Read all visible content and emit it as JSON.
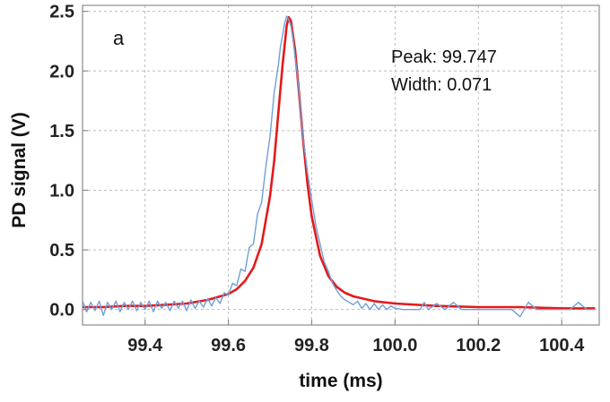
{
  "chart_data": {
    "type": "line",
    "panel_label": "a",
    "xlabel": "time (ms)",
    "ylabel": "PD signal (V)",
    "xlim": [
      99.25,
      100.49
    ],
    "ylim": [
      -0.13,
      2.55
    ],
    "xticks": [
      99.4,
      99.6,
      99.8,
      100.0,
      100.2,
      100.4
    ],
    "xtick_labels": [
      "99.4",
      "99.6",
      "99.8",
      "100.0",
      "100.2",
      "100.4"
    ],
    "yticks": [
      0.0,
      0.5,
      1.0,
      1.5,
      2.0,
      2.5
    ],
    "ytick_labels": [
      "0.0",
      "0.5",
      "1.0",
      "1.5",
      "2.0",
      "2.5"
    ],
    "grid": "dashed",
    "annotations": [
      "Peak: 99.747",
      "Width: 0.071"
    ],
    "colors": {
      "data": "#6f9fd8",
      "fit": "#e31a1c"
    },
    "series": [
      {
        "kind": "measured",
        "x": [
          99.25,
          99.26,
          99.27,
          99.28,
          99.29,
          99.3,
          99.31,
          99.32,
          99.33,
          99.34,
          99.35,
          99.36,
          99.37,
          99.38,
          99.39,
          99.4,
          99.41,
          99.42,
          99.43,
          99.44,
          99.45,
          99.46,
          99.47,
          99.48,
          99.49,
          99.5,
          99.51,
          99.52,
          99.53,
          99.54,
          99.55,
          99.56,
          99.57,
          99.58,
          99.59,
          99.6,
          99.61,
          99.62,
          99.63,
          99.64,
          99.65,
          99.66,
          99.67,
          99.68,
          99.69,
          99.7,
          99.71,
          99.72,
          99.725,
          99.73,
          99.735,
          99.74,
          99.745,
          99.75,
          99.755,
          99.76,
          99.765,
          99.77,
          99.775,
          99.78,
          99.79,
          99.8,
          99.81,
          99.82,
          99.83,
          99.84,
          99.85,
          99.86,
          99.87,
          99.88,
          99.89,
          99.9,
          99.91,
          99.92,
          99.93,
          99.94,
          99.95,
          99.96,
          99.97,
          99.98,
          99.99,
          100.0,
          100.02,
          100.04,
          100.06,
          100.07,
          100.08,
          100.1,
          100.12,
          100.14,
          100.16,
          100.18,
          100.2,
          100.22,
          100.24,
          100.26,
          100.28,
          100.3,
          100.32,
          100.34,
          100.36,
          100.38,
          100.4,
          100.42,
          100.44,
          100.46,
          100.48
        ],
        "y": [
          0.07,
          -0.02,
          0.06,
          -0.01,
          0.07,
          -0.05,
          0.06,
          0.0,
          0.07,
          -0.02,
          0.06,
          0.0,
          0.07,
          -0.01,
          0.06,
          0.0,
          0.07,
          -0.02,
          0.07,
          0.01,
          0.06,
          -0.01,
          0.07,
          0.01,
          0.07,
          -0.01,
          0.08,
          0.01,
          0.07,
          0.02,
          0.09,
          0.03,
          0.1,
          0.05,
          0.14,
          0.12,
          0.22,
          0.2,
          0.34,
          0.32,
          0.52,
          0.55,
          0.8,
          0.9,
          1.2,
          1.45,
          1.82,
          2.05,
          2.2,
          2.3,
          2.4,
          2.46,
          2.43,
          2.38,
          2.28,
          2.12,
          1.98,
          1.8,
          1.6,
          1.42,
          1.15,
          0.92,
          0.7,
          0.55,
          0.4,
          0.32,
          0.22,
          0.16,
          0.11,
          0.08,
          0.06,
          0.04,
          0.07,
          0.01,
          0.05,
          0.0,
          0.05,
          0.0,
          0.04,
          0.0,
          0.03,
          0.01,
          0.0,
          0.0,
          0.0,
          0.06,
          0.0,
          0.05,
          0.0,
          0.06,
          0.0,
          0.0,
          0.0,
          0.0,
          0.0,
          0.0,
          0.0,
          -0.06,
          0.06,
          0.0,
          0.0,
          0.0,
          0.0,
          0.0,
          0.06,
          0.0,
          0.0
        ]
      },
      {
        "kind": "fit",
        "x": [
          99.25,
          99.3,
          99.35,
          99.4,
          99.45,
          99.5,
          99.55,
          99.6,
          99.62,
          99.64,
          99.66,
          99.68,
          99.7,
          99.71,
          99.72,
          99.73,
          99.74,
          99.745,
          99.75,
          99.76,
          99.77,
          99.78,
          99.79,
          99.8,
          99.82,
          99.84,
          99.86,
          99.88,
          99.9,
          99.95,
          100.0,
          100.1,
          100.2,
          100.3,
          100.4,
          100.48
        ],
        "y": [
          0.02,
          0.02,
          0.03,
          0.03,
          0.04,
          0.05,
          0.08,
          0.13,
          0.17,
          0.24,
          0.35,
          0.55,
          0.95,
          1.25,
          1.65,
          2.05,
          2.38,
          2.45,
          2.42,
          2.18,
          1.8,
          1.4,
          1.05,
          0.78,
          0.45,
          0.28,
          0.19,
          0.14,
          0.11,
          0.07,
          0.05,
          0.03,
          0.02,
          0.02,
          0.01,
          0.01
        ]
      }
    ]
  }
}
